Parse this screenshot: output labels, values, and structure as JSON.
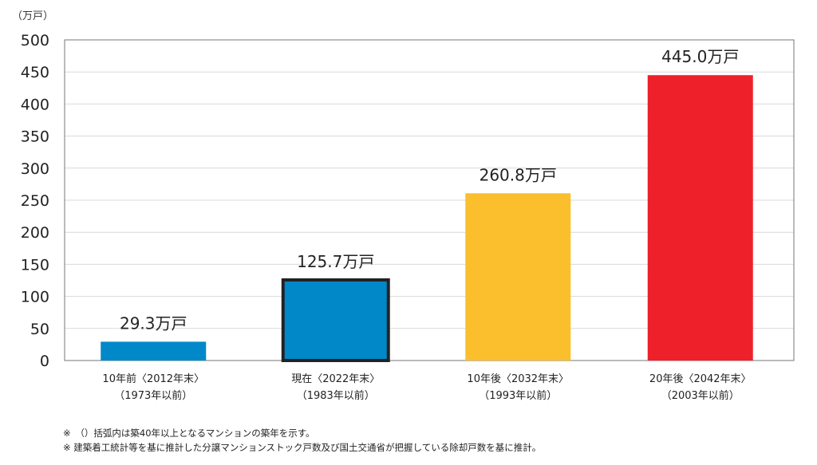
{
  "chart_data": {
    "type": "bar",
    "unit_label": "（万戸）",
    "categories": [
      {
        "line1": "10年前〈2012年末〉",
        "line2": "（1973年以前）"
      },
      {
        "line1": "現在〈2022年末〉",
        "line2": "（1983年以前）"
      },
      {
        "line1": "10年後〈2032年末〉",
        "line2": "（1993年以前）"
      },
      {
        "line1": "20年後〈2042年末〉",
        "line2": "（2003年以前）"
      }
    ],
    "values": [
      29.3,
      125.7,
      260.8,
      445.0
    ],
    "data_labels": [
      "29.3万戸",
      "125.7万戸",
      "260.8万戸",
      "445.0万戸"
    ],
    "colors": [
      "#0088C8",
      "#0088C8",
      "#FBBF2E",
      "#EE2029"
    ],
    "highlighted_index": 1,
    "ylim": [
      0,
      500
    ],
    "yticks": [
      0,
      50,
      100,
      150,
      200,
      250,
      300,
      350,
      400,
      450,
      500
    ],
    "grid": true
  },
  "notes": [
    "※　（）括弧内は築40年以上となるマンションの築年を示す。",
    "※ 建築着工統計等を基に推計した分譲マンションストック戸数及び国土交通省が把握している除却戸数を基に推計。"
  ]
}
